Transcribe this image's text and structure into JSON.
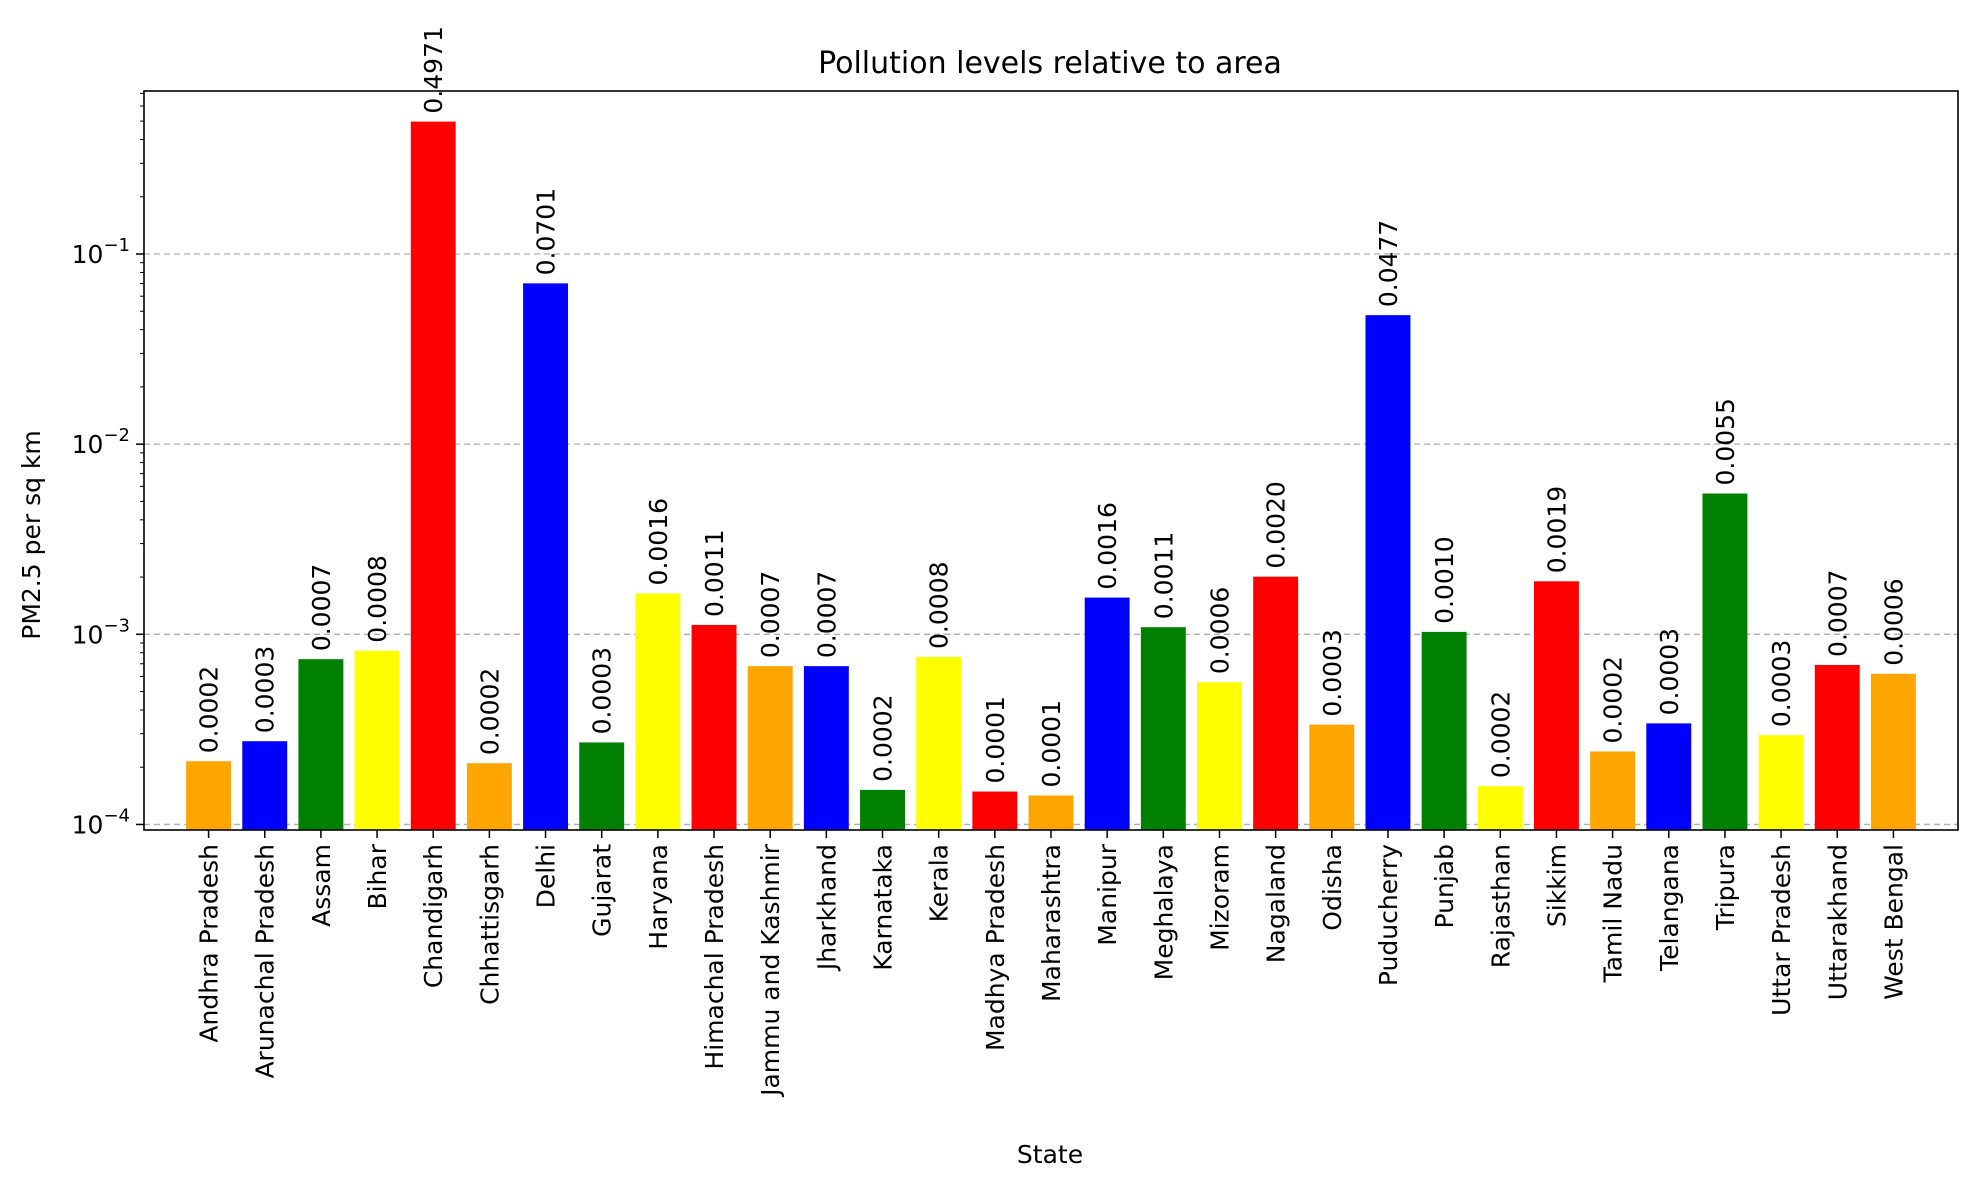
{
  "chart_data": {
    "type": "bar",
    "title": "Pollution levels relative to area",
    "xlabel": "State",
    "ylabel": "PM2.5 per sq km",
    "yscale": "log",
    "ylim": [
      9.35e-05,
      0.72
    ],
    "yticks": [
      {
        "value": 0.0001,
        "base": "10",
        "exp": "−4"
      },
      {
        "value": 0.001,
        "base": "10",
        "exp": "−3"
      },
      {
        "value": 0.01,
        "base": "10",
        "exp": "−2"
      },
      {
        "value": 0.1,
        "base": "10",
        "exp": "−1"
      }
    ],
    "grid": "y-dashed",
    "categories": [
      "Andhra Pradesh",
      "Arunachal Pradesh",
      "Assam",
      "Bihar",
      "Chandigarh",
      "Chhattisgarh",
      "Delhi",
      "Gujarat",
      "Haryana",
      "Himachal Pradesh",
      "Jammu and Kashmir",
      "Jharkhand",
      "Karnataka",
      "Kerala",
      "Madhya Pradesh",
      "Maharashtra",
      "Manipur",
      "Meghalaya",
      "Mizoram",
      "Nagaland",
      "Odisha",
      "Puducherry",
      "Punjab",
      "Rajasthan",
      "Sikkim",
      "Tamil Nadu",
      "Telangana",
      "Tripura",
      "Uttar Pradesh",
      "Uttarakhand",
      "West Bengal"
    ],
    "values": [
      0.000215,
      0.000274,
      0.00074,
      0.00082,
      0.4971,
      0.00021,
      0.0701,
      0.00027,
      0.00164,
      0.00112,
      0.00068,
      0.00068,
      0.000152,
      0.00076,
      0.000149,
      0.000142,
      0.00156,
      0.00109,
      0.00056,
      0.00201,
      0.000335,
      0.0477,
      0.00103,
      0.000159,
      0.0019,
      0.000242,
      0.00034,
      0.0055,
      0.000295,
      0.00069,
      0.00062
    ],
    "value_labels": [
      "0.0002",
      "0.0003",
      "0.0007",
      "0.0008",
      "0.4971",
      "0.0002",
      "0.0701",
      "0.0003",
      "0.0016",
      "0.0011",
      "0.0007",
      "0.0007",
      "0.0002",
      "0.0008",
      "0.0001",
      "0.0001",
      "0.0016",
      "0.0011",
      "0.0006",
      "0.0020",
      "0.0003",
      "0.0477",
      "0.0010",
      "0.0002",
      "0.0019",
      "0.0002",
      "0.0003",
      "0.0055",
      "0.0003",
      "0.0007",
      "0.0006"
    ],
    "colors": [
      "#ffa500",
      "#0000ff",
      "#008000",
      "#ffff00",
      "#ff0000"
    ]
  }
}
